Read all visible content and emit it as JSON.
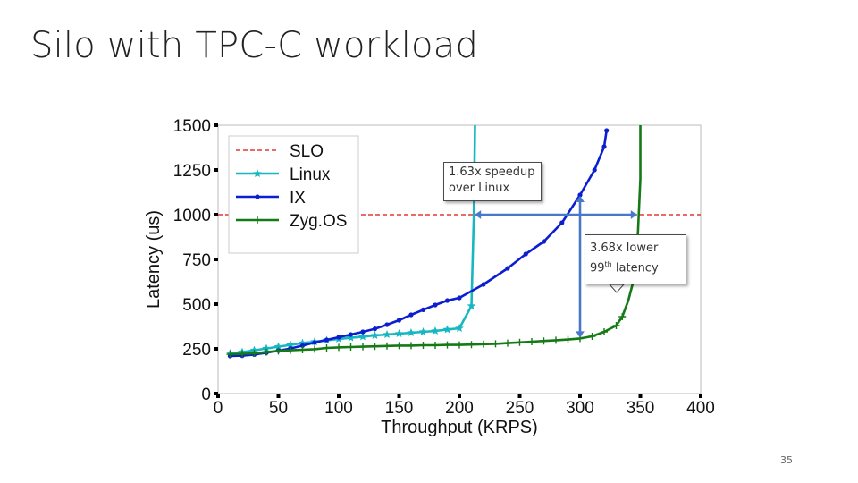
{
  "slide": {
    "title": "Silo with TPC-C workload",
    "number": "35"
  },
  "annotations": {
    "speedup_line1": "1.63x speedup",
    "speedup_line2": "over Linux",
    "latency_line1": "3.68x lower",
    "latency_line2_pre": "99",
    "latency_line2_sup": "th",
    "latency_line2_post": " latency"
  },
  "colors": {
    "slo": "#dd1111",
    "linux": "#17b7c2",
    "ix": "#0b1fd0",
    "zygos": "#157a15",
    "arrow": "#4a78c8"
  },
  "chart_data": {
    "type": "line",
    "xlabel": "Throughput (KRPS)",
    "ylabel": "Latency (us)",
    "xlim": [
      0,
      400
    ],
    "ylim": [
      0,
      1500
    ],
    "x_ticks": [
      "0",
      "50",
      "100",
      "150",
      "200",
      "250",
      "300",
      "350",
      "400"
    ],
    "y_ticks": [
      "0",
      "250",
      "500",
      "750",
      "1000",
      "1250",
      "1500"
    ],
    "legend_position": "top-left",
    "series": [
      {
        "name": "SLO",
        "style": "dashed",
        "points": [
          [
            0,
            1000
          ],
          [
            400,
            1000
          ]
        ]
      },
      {
        "name": "Linux",
        "marker": "star",
        "points": [
          [
            10,
            225
          ],
          [
            20,
            232
          ],
          [
            30,
            242
          ],
          [
            40,
            252
          ],
          [
            50,
            262
          ],
          [
            60,
            272
          ],
          [
            70,
            282
          ],
          [
            80,
            290
          ],
          [
            90,
            298
          ],
          [
            100,
            305
          ],
          [
            110,
            312
          ],
          [
            120,
            318
          ],
          [
            130,
            325
          ],
          [
            140,
            330
          ],
          [
            150,
            335
          ],
          [
            160,
            340
          ],
          [
            170,
            345
          ],
          [
            180,
            350
          ],
          [
            190,
            358
          ],
          [
            200,
            365
          ],
          [
            210,
            490
          ],
          [
            212,
            1000
          ],
          [
            213,
            1500
          ]
        ]
      },
      {
        "name": "IX",
        "marker": "dot",
        "points": [
          [
            10,
            210
          ],
          [
            20,
            212
          ],
          [
            30,
            218
          ],
          [
            40,
            228
          ],
          [
            50,
            240
          ],
          [
            60,
            252
          ],
          [
            70,
            268
          ],
          [
            80,
            285
          ],
          [
            90,
            300
          ],
          [
            100,
            315
          ],
          [
            110,
            330
          ],
          [
            120,
            345
          ],
          [
            130,
            362
          ],
          [
            140,
            385
          ],
          [
            150,
            410
          ],
          [
            160,
            440
          ],
          [
            170,
            468
          ],
          [
            180,
            495
          ],
          [
            190,
            520
          ],
          [
            200,
            535
          ],
          [
            220,
            610
          ],
          [
            240,
            700
          ],
          [
            255,
            780
          ],
          [
            270,
            850
          ],
          [
            285,
            955
          ],
          [
            300,
            1110
          ],
          [
            312,
            1250
          ],
          [
            320,
            1380
          ],
          [
            322,
            1470
          ]
        ]
      },
      {
        "name": "Zyg.OS",
        "marker": "plus",
        "points": [
          [
            10,
            220
          ],
          [
            20,
            222
          ],
          [
            30,
            225
          ],
          [
            40,
            232
          ],
          [
            50,
            238
          ],
          [
            60,
            242
          ],
          [
            70,
            245
          ],
          [
            80,
            248
          ],
          [
            90,
            255
          ],
          [
            100,
            258
          ],
          [
            110,
            260
          ],
          [
            120,
            262
          ],
          [
            130,
            264
          ],
          [
            140,
            266
          ],
          [
            150,
            268
          ],
          [
            160,
            268
          ],
          [
            170,
            270
          ],
          [
            180,
            270
          ],
          [
            190,
            272
          ],
          [
            200,
            272
          ],
          [
            210,
            274
          ],
          [
            220,
            276
          ],
          [
            230,
            278
          ],
          [
            240,
            282
          ],
          [
            250,
            286
          ],
          [
            260,
            290
          ],
          [
            270,
            294
          ],
          [
            280,
            298
          ],
          [
            290,
            302
          ],
          [
            300,
            308
          ],
          [
            310,
            320
          ],
          [
            320,
            345
          ],
          [
            330,
            380
          ],
          [
            335,
            430
          ],
          [
            340,
            520
          ],
          [
            345,
            650
          ],
          [
            348,
            900
          ],
          [
            350,
            1200
          ],
          [
            350,
            1500
          ]
        ]
      }
    ]
  }
}
